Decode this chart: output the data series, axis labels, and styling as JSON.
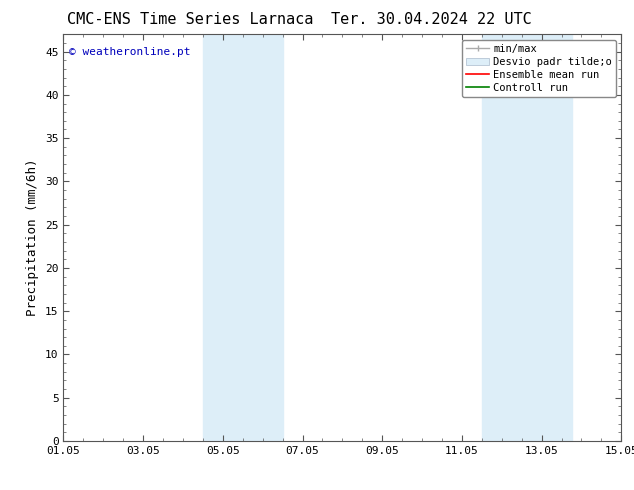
{
  "title_left": "CMC-ENS Time Series Larnaca",
  "title_right": "Ter. 30.04.2024 22 UTC",
  "ylabel": "Precipitation (mm/6h)",
  "xtick_labels": [
    "01.05",
    "03.05",
    "05.05",
    "07.05",
    "09.05",
    "11.05",
    "13.05",
    "15.05"
  ],
  "xtick_positions": [
    0,
    2,
    4,
    6,
    8,
    10,
    12,
    14
  ],
  "ylim": [
    0,
    47
  ],
  "ytick_positions": [
    0,
    5,
    10,
    15,
    20,
    25,
    30,
    35,
    40,
    45
  ],
  "ytick_labels": [
    "0",
    "5",
    "10",
    "15",
    "20",
    "25",
    "30",
    "35",
    "40",
    "45"
  ],
  "background_color": "#ffffff",
  "shaded_regions": [
    {
      "x_start": 3.5,
      "x_end": 5.5,
      "color": "#ddeef8"
    },
    {
      "x_start": 10.5,
      "x_end": 12.75,
      "color": "#ddeef8"
    }
  ],
  "watermark_text": "© weatheronline.pt",
  "watermark_color": "#0000bb",
  "legend_labels": [
    "min/max",
    "Desvio padr tilde;o",
    "Ensemble mean run",
    "Controll run"
  ],
  "legend_colors_line": [
    "#aaaaaa",
    "#ccddee",
    "#ff0000",
    "#008000"
  ],
  "title_fontsize": 11,
  "tick_fontsize": 8,
  "ylabel_fontsize": 9,
  "legend_fontsize": 7.5,
  "watermark_fontsize": 8
}
